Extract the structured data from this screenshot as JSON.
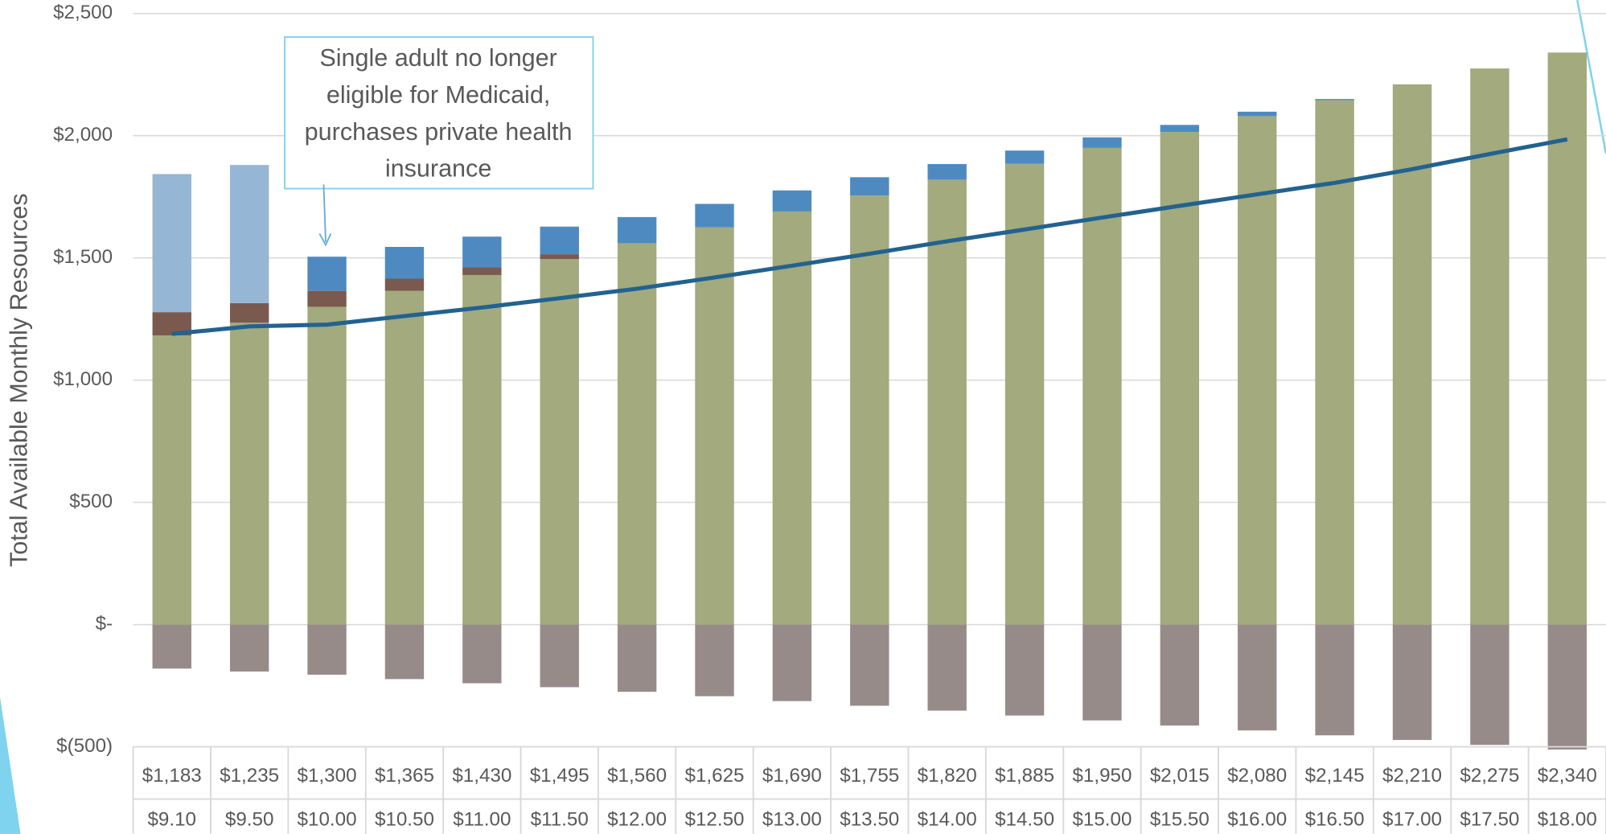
{
  "chart_data": {
    "type": "bar",
    "y_label": "Total Available Monthly Resources",
    "categories": [
      "$1,183",
      "$1,235",
      "$1,300",
      "$1,365",
      "$1,430",
      "$1,495",
      "$1,560",
      "$1,625",
      "$1,690",
      "$1,755",
      "$1,820",
      "$1,885",
      "$1,950",
      "$2,015",
      "$2,080",
      "$2,145",
      "$2,210",
      "$2,275",
      "$2,340"
    ],
    "categories_2": [
      "$9.10",
      "$9.50",
      "$10.00",
      "$10.50",
      "$11.00",
      "$11.50",
      "$12.00",
      "$12.50",
      "$13.00",
      "$13.50",
      "$14.00",
      "$14.50",
      "$15.00",
      "$15.50",
      "$16.00",
      "$16.50",
      "$17.00",
      "$17.50",
      "$18.00"
    ],
    "stacked": true,
    "series": [
      {
        "color": "#a2aa7e",
        "values": [
          1183,
          1235,
          1300,
          1365,
          1430,
          1495,
          1560,
          1625,
          1690,
          1755,
          1820,
          1885,
          1950,
          2015,
          2080,
          2145,
          2210,
          2275,
          2340
        ]
      },
      {
        "color": "#7a5a4e",
        "values": [
          95,
          80,
          65,
          50,
          31,
          20,
          0,
          0,
          0,
          0,
          0,
          0,
          0,
          0,
          0,
          0,
          0,
          0,
          0
        ]
      },
      {
        "color": "#95b6d4",
        "values": [
          565,
          565,
          0,
          0,
          0,
          0,
          0,
          0,
          0,
          0,
          0,
          0,
          0,
          0,
          0,
          0,
          0,
          0,
          0
        ]
      },
      {
        "color": "#4e8ac0",
        "values": [
          0,
          0,
          140,
          130,
          126,
          113,
          107,
          96,
          86,
          75,
          64,
          54,
          43,
          29,
          18,
          5,
          0,
          0,
          0
        ]
      },
      {
        "color": "#978b8a",
        "values": [
          -180,
          -192,
          -205,
          -223,
          -240,
          -256,
          -275,
          -293,
          -313,
          -332,
          -352,
          -372,
          -392,
          -413,
          -433,
          -453,
          -472,
          -492,
          -511
        ]
      },
      {
        "type": "line",
        "color": "#22628f",
        "values": [
          1189,
          1220,
          1227,
          1262,
          1297,
          1335,
          1374,
          1420,
          1468,
          1517,
          1568,
          1616,
          1665,
          1713,
          1760,
          1807,
          1863,
          1925,
          1985
        ]
      }
    ],
    "ylim": [
      -500,
      2500
    ],
    "yticks": [
      {
        "value": -500,
        "label": "$(500)"
      },
      {
        "value": 0,
        "label": "$-"
      },
      {
        "value": 500,
        "label": "$500"
      },
      {
        "value": 1000,
        "label": "$1,000"
      },
      {
        "value": 1500,
        "label": "$1,500"
      },
      {
        "value": 2000,
        "label": "$2,000"
      },
      {
        "value": 2500,
        "label": "$2,500"
      }
    ],
    "grid": true,
    "annotation": {
      "lines": [
        "Single adult no longer",
        "eligible for Medicaid,",
        "purchases private health",
        "insurance"
      ]
    }
  }
}
